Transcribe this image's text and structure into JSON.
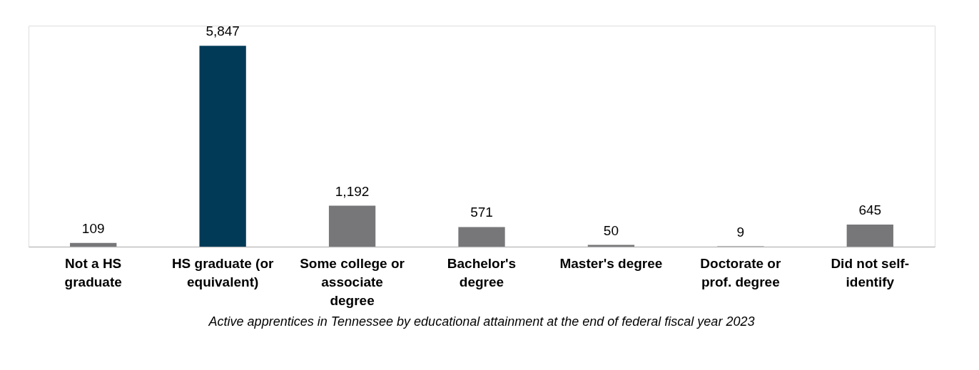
{
  "chart_data": {
    "type": "bar",
    "categories": [
      "Not a HS graduate",
      "HS graduate (or equivalent)",
      "Some college or associate degree",
      "Bachelor's degree",
      "Master's degree",
      "Doctorate or prof. degree",
      "Did not self-identify"
    ],
    "values": [
      109,
      5847,
      1192,
      571,
      50,
      9,
      645
    ],
    "value_labels": [
      "109",
      "5,847",
      "1,192",
      "571",
      "50",
      "9",
      "645"
    ],
    "colors": [
      "#77777a",
      "#003a57",
      "#77777a",
      "#77777a",
      "#77777a",
      "#77777a",
      "#77777a"
    ],
    "annotations": [
      "Active apprentices in Tennessee by educational attainment at the end of federal fiscal year 2023"
    ]
  }
}
